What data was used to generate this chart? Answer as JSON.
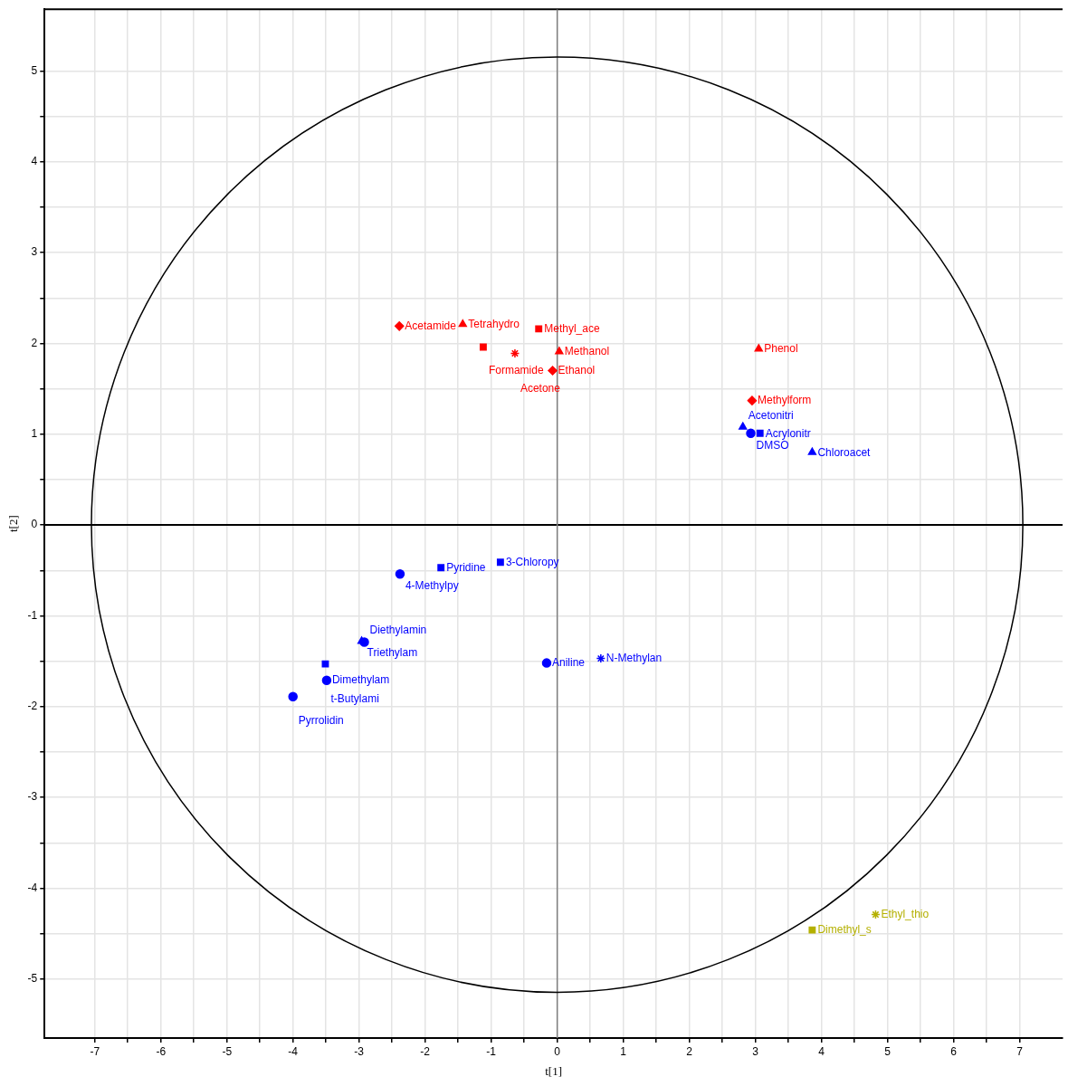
{
  "chart_data": {
    "type": "scatter",
    "xlabel": "t[1]",
    "ylabel": "t[2]",
    "xlim": [
      -7.76,
      7.65
    ],
    "ylim": [
      -5.65,
      5.68
    ],
    "xticks": [
      -7,
      {
        "value": -6.5,
        "label": null
      },
      -6,
      {
        "value": -5.5,
        "label": null
      },
      -5,
      {
        "value": -4.5,
        "label": null
      },
      -4,
      {
        "value": -3.5,
        "label": null
      },
      -3,
      {
        "value": -2.5,
        "label": null
      },
      -2,
      {
        "value": -1.5,
        "label": null
      },
      -1,
      {
        "value": -0.5,
        "label": null
      },
      0,
      {
        "value": 0.5,
        "label": null
      },
      1,
      {
        "value": 1.5,
        "label": null
      },
      2,
      {
        "value": 2.5,
        "label": null
      },
      3,
      {
        "value": 3.5,
        "label": null
      },
      4,
      {
        "value": 4.5,
        "label": null
      },
      5,
      {
        "value": 5.5,
        "label": null
      },
      6,
      {
        "value": 6.5,
        "label": null
      },
      7
    ],
    "yticks": [
      -5,
      {
        "value": -4.5,
        "label": null
      },
      -4,
      {
        "value": -3.5,
        "label": null
      },
      -3,
      {
        "value": -2.5,
        "label": null
      },
      -2,
      {
        "value": -1.5,
        "label": null
      },
      -1,
      {
        "value": -0.5,
        "label": null
      },
      0,
      {
        "value": 0.5,
        "label": null
      },
      1,
      {
        "value": 1.5,
        "label": null
      },
      2,
      {
        "value": 2.5,
        "label": null
      },
      3,
      {
        "value": 3.5,
        "label": null
      },
      4,
      {
        "value": 4.5,
        "label": null
      },
      5
    ],
    "grid": true,
    "legend": false,
    "ref_lines": [
      {
        "axis": "x",
        "value": 0,
        "color": "#808080"
      },
      {
        "axis": "y",
        "value": 0,
        "color": "#000000"
      }
    ],
    "series": [
      {
        "color": "#ff0000",
        "marker": "diamond",
        "x": [
          -2.39,
          -0.07,
          2.95
        ],
        "values": [
          2.19,
          1.7,
          1.37
        ]
      },
      {
        "color": "#ff0000",
        "marker": "triangle",
        "x": [
          -1.43,
          0.03,
          3.05
        ],
        "values": [
          2.21,
          1.91,
          1.94
        ]
      },
      {
        "color": "#ff0000",
        "marker": "square",
        "x": [
          -0.28,
          -1.12
        ],
        "values": [
          2.16,
          1.96
        ]
      },
      {
        "color": "#ff0000",
        "marker": "cross",
        "x": [
          -0.64
        ],
        "values": [
          1.89
        ]
      },
      {
        "color": "#0000ff",
        "marker": "triangle",
        "x": [
          2.81,
          3.86,
          -2.96
        ],
        "values": [
          1.08,
          0.8,
          -1.28
        ]
      },
      {
        "color": "#0000ff",
        "marker": "circle",
        "x": [
          2.93,
          -2.38,
          -2.92,
          -3.49,
          -4.0,
          -0.16
        ],
        "values": [
          1.01,
          -0.54,
          -1.29,
          -1.71,
          -1.89,
          -1.52
        ]
      },
      {
        "color": "#0000ff",
        "marker": "square",
        "x": [
          3.07,
          -1.76,
          -0.86,
          -3.51
        ],
        "values": [
          1.01,
          -0.47,
          -0.41,
          -1.53
        ]
      },
      {
        "color": "#0000ff",
        "marker": "cross",
        "x": [
          0.66
        ],
        "values": [
          -1.47
        ]
      },
      {
        "color": "#b4b000",
        "marker": "square",
        "x": [
          3.86
        ],
        "values": [
          -4.46
        ]
      },
      {
        "color": "#b4b000",
        "marker": "cross",
        "x": [
          4.82
        ],
        "values": [
          -4.29
        ]
      }
    ],
    "annotations": [
      {
        "text": "Acetamide",
        "x": -2.39,
        "y": 2.19
      },
      {
        "text": "Tetrahydro",
        "x": -1.43,
        "y": 2.21
      },
      {
        "text": "Methyl_ace",
        "x": -0.28,
        "y": 2.16
      },
      {
        "text": "Formamide",
        "x": -1.12,
        "y": 1.96
      },
      {
        "text": "Acetone",
        "x": -0.64,
        "y": 1.89
      },
      {
        "text": "Methanol",
        "x": 0.03,
        "y": 1.91
      },
      {
        "text": "Ethanol",
        "x": -0.07,
        "y": 1.7
      },
      {
        "text": "Phenol",
        "x": 3.05,
        "y": 1.94
      },
      {
        "text": "Methylform",
        "x": 2.95,
        "y": 1.37
      },
      {
        "text": "Acetonitri",
        "x": 2.81,
        "y": 1.08
      },
      {
        "text": "DMSO",
        "x": 2.93,
        "y": 1.01
      },
      {
        "text": "Acrylonitr",
        "x": 3.07,
        "y": 1.01
      },
      {
        "text": "Chloroacet",
        "x": 3.86,
        "y": 0.8
      },
      {
        "text": "4-Methylpy",
        "x": -2.38,
        "y": -0.54
      },
      {
        "text": "Pyridine",
        "x": -1.76,
        "y": -0.47
      },
      {
        "text": "3-Chloropy",
        "x": -0.86,
        "y": -0.41
      },
      {
        "text": "Triethylam",
        "x": -2.96,
        "y": -1.28
      },
      {
        "text": "Diethylamin",
        "x": -2.92,
        "y": -1.29
      },
      {
        "text": "t-Butylami",
        "x": -3.51,
        "y": -1.53
      },
      {
        "text": "Dimethylam",
        "x": -3.49,
        "y": -1.71
      },
      {
        "text": "Pyrrolidin",
        "x": -4.0,
        "y": -1.89
      },
      {
        "text": "Aniline",
        "x": -0.16,
        "y": -1.52
      },
      {
        "text": "N-Methylan",
        "x": 0.66,
        "y": -1.47
      },
      {
        "text": "Dimethyl_s",
        "x": 3.86,
        "y": -4.46
      },
      {
        "text": "Ethyl_thio",
        "x": 4.82,
        "y": -4.29
      }
    ]
  }
}
